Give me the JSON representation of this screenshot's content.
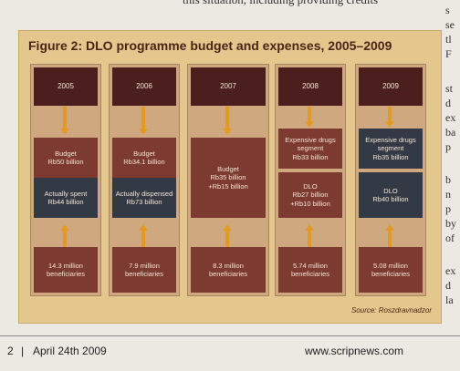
{
  "top_text": "this situation, including providing credits",
  "figure": {
    "title": "Figure 2: DLO programme budget and expenses, 2005–2009",
    "source": "Source: Roszdravnadzor",
    "columns": [
      {
        "year": "2005",
        "budget": "Budget\nRb50 billion",
        "spent": "Actually spent\nRb44 billion",
        "beneficiaries": "14.3 million\nbeneficiaries"
      },
      {
        "year": "2006",
        "budget": "Budget\nRb34.1 billion",
        "spent": "Actually dispensed\nRb73 billion",
        "beneficiaries": "7.9 million\nbeneficiaries"
      },
      {
        "year": "2007",
        "budget": "Budget\nRb35 billion\n+Rb15 billion",
        "beneficiaries": "8.3 million\nbeneficiaries"
      },
      {
        "year": "2008",
        "expensive": "Expensive drugs\nsegment\nRb33 billion",
        "dlo": "DLO\nRb27 billion\n+Rb10 billion",
        "beneficiaries": "5.74 million\nbeneficiaries"
      },
      {
        "year": "2009",
        "expensive": "Expensive drugs\nsegment\nRb35 billion",
        "dlo": "DLO\nRb40 billion",
        "beneficiaries": "5.08 million\nbeneficiaries"
      }
    ]
  },
  "right_column": [
    "s",
    "se",
    "tl",
    "F",
    "st",
    "d",
    "ex",
    "ba",
    "p",
    "b",
    "n",
    "p",
    "by",
    "of",
    "ex",
    "d",
    "la"
  ],
  "footer": {
    "page_number": "2",
    "separator": "|",
    "date": "April 24th 2009",
    "url": "www.scripnews.com"
  }
}
